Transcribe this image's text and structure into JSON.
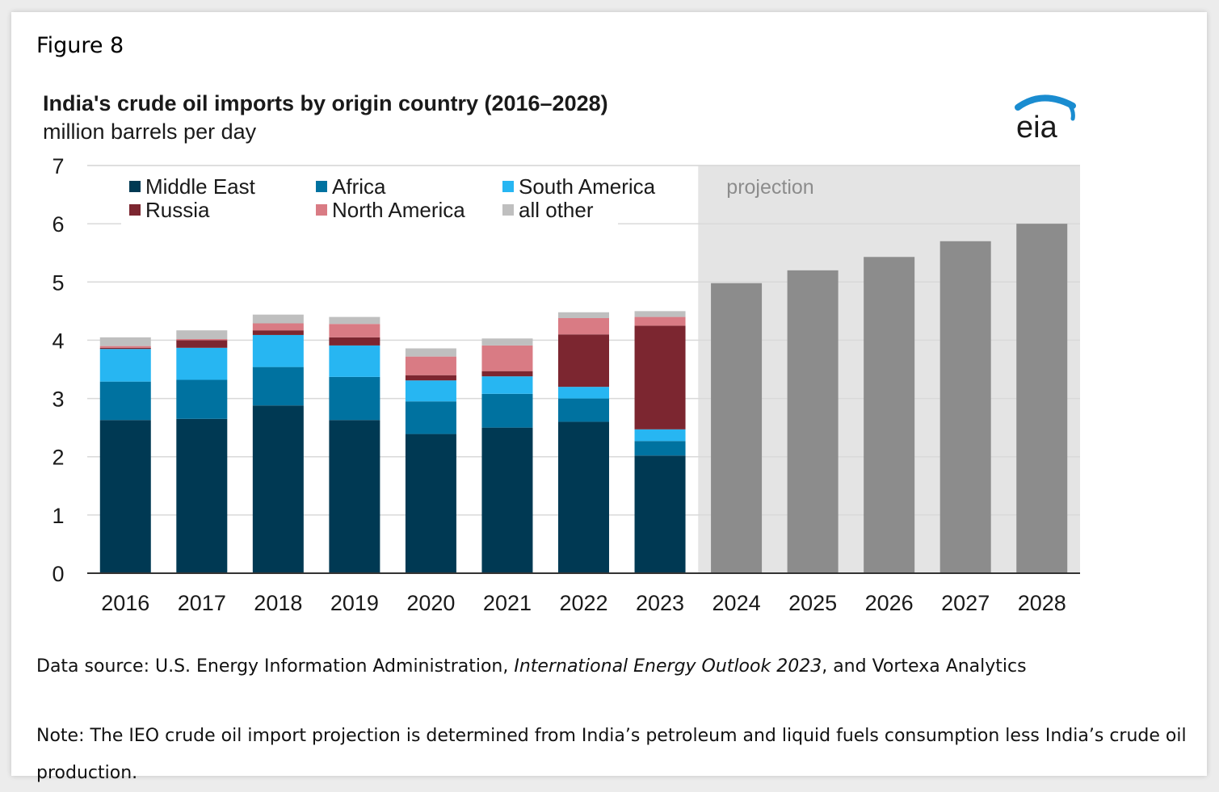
{
  "figure_label": "Figure 8",
  "logo_text": "eia",
  "colors": {
    "middle_east": "#003953",
    "africa": "#0072a0",
    "south_america": "#27b6f2",
    "russia": "#7c2630",
    "north_america": "#d97b84",
    "all_other": "#bfbfbf",
    "projection_bar": "#8c8c8c",
    "projection_bg": "#e4e4e4",
    "logo": "#1a8cd0"
  },
  "chart_data": {
    "type": "bar",
    "stacked": true,
    "title": "India's crude oil imports by origin country (2016–2028)",
    "subtitle": "million barrels per day",
    "ylim": [
      0,
      7
    ],
    "yticks": [
      "0",
      "1",
      "2",
      "3",
      "4",
      "5",
      "6",
      "7"
    ],
    "categories": [
      "2016",
      "2017",
      "2018",
      "2019",
      "2020",
      "2021",
      "2022",
      "2023",
      "2024",
      "2025",
      "2026",
      "2027",
      "2028"
    ],
    "projection_label": "projection",
    "projection_categories": [
      "2024",
      "2025",
      "2026",
      "2027",
      "2028"
    ],
    "grid": true,
    "legend_placement": "top-left",
    "series": [
      {
        "name": "Middle East",
        "color_key": "middle_east",
        "values": [
          2.63,
          2.65,
          2.88,
          2.63,
          2.39,
          2.5,
          2.6,
          2.02,
          null,
          null,
          null,
          null,
          null
        ]
      },
      {
        "name": "Africa",
        "color_key": "africa",
        "values": [
          0.66,
          0.67,
          0.66,
          0.74,
          0.56,
          0.58,
          0.4,
          0.25,
          null,
          null,
          null,
          null,
          null
        ]
      },
      {
        "name": "South America",
        "color_key": "south_america",
        "values": [
          0.56,
          0.55,
          0.55,
          0.54,
          0.36,
          0.3,
          0.2,
          0.2,
          null,
          null,
          null,
          null,
          null
        ]
      },
      {
        "name": "Russia",
        "color_key": "russia",
        "values": [
          0.02,
          0.13,
          0.08,
          0.14,
          0.09,
          0.09,
          0.9,
          1.78,
          null,
          null,
          null,
          null,
          null
        ]
      },
      {
        "name": "North America",
        "color_key": "north_america",
        "values": [
          0.03,
          0.02,
          0.12,
          0.23,
          0.32,
          0.44,
          0.28,
          0.15,
          null,
          null,
          null,
          null,
          null
        ]
      },
      {
        "name": "all other",
        "color_key": "all_other",
        "values": [
          0.15,
          0.15,
          0.15,
          0.12,
          0.14,
          0.12,
          0.1,
          0.1,
          null,
          null,
          null,
          null,
          null
        ]
      },
      {
        "name": "",
        "color_key": "projection_bar",
        "values": [
          null,
          null,
          null,
          null,
          null,
          null,
          null,
          null,
          4.98,
          5.2,
          5.43,
          5.7,
          6.0
        ]
      }
    ]
  },
  "source": {
    "prefix": "Data source: U.S. Energy Information Administration, ",
    "italic": "International Energy Outlook 2023",
    "suffix": ", and Vortexa Analytics"
  },
  "note": "Note: The IEO crude oil import projection is determined from India’s petroleum and liquid fuels consumption less India’s crude oil production."
}
